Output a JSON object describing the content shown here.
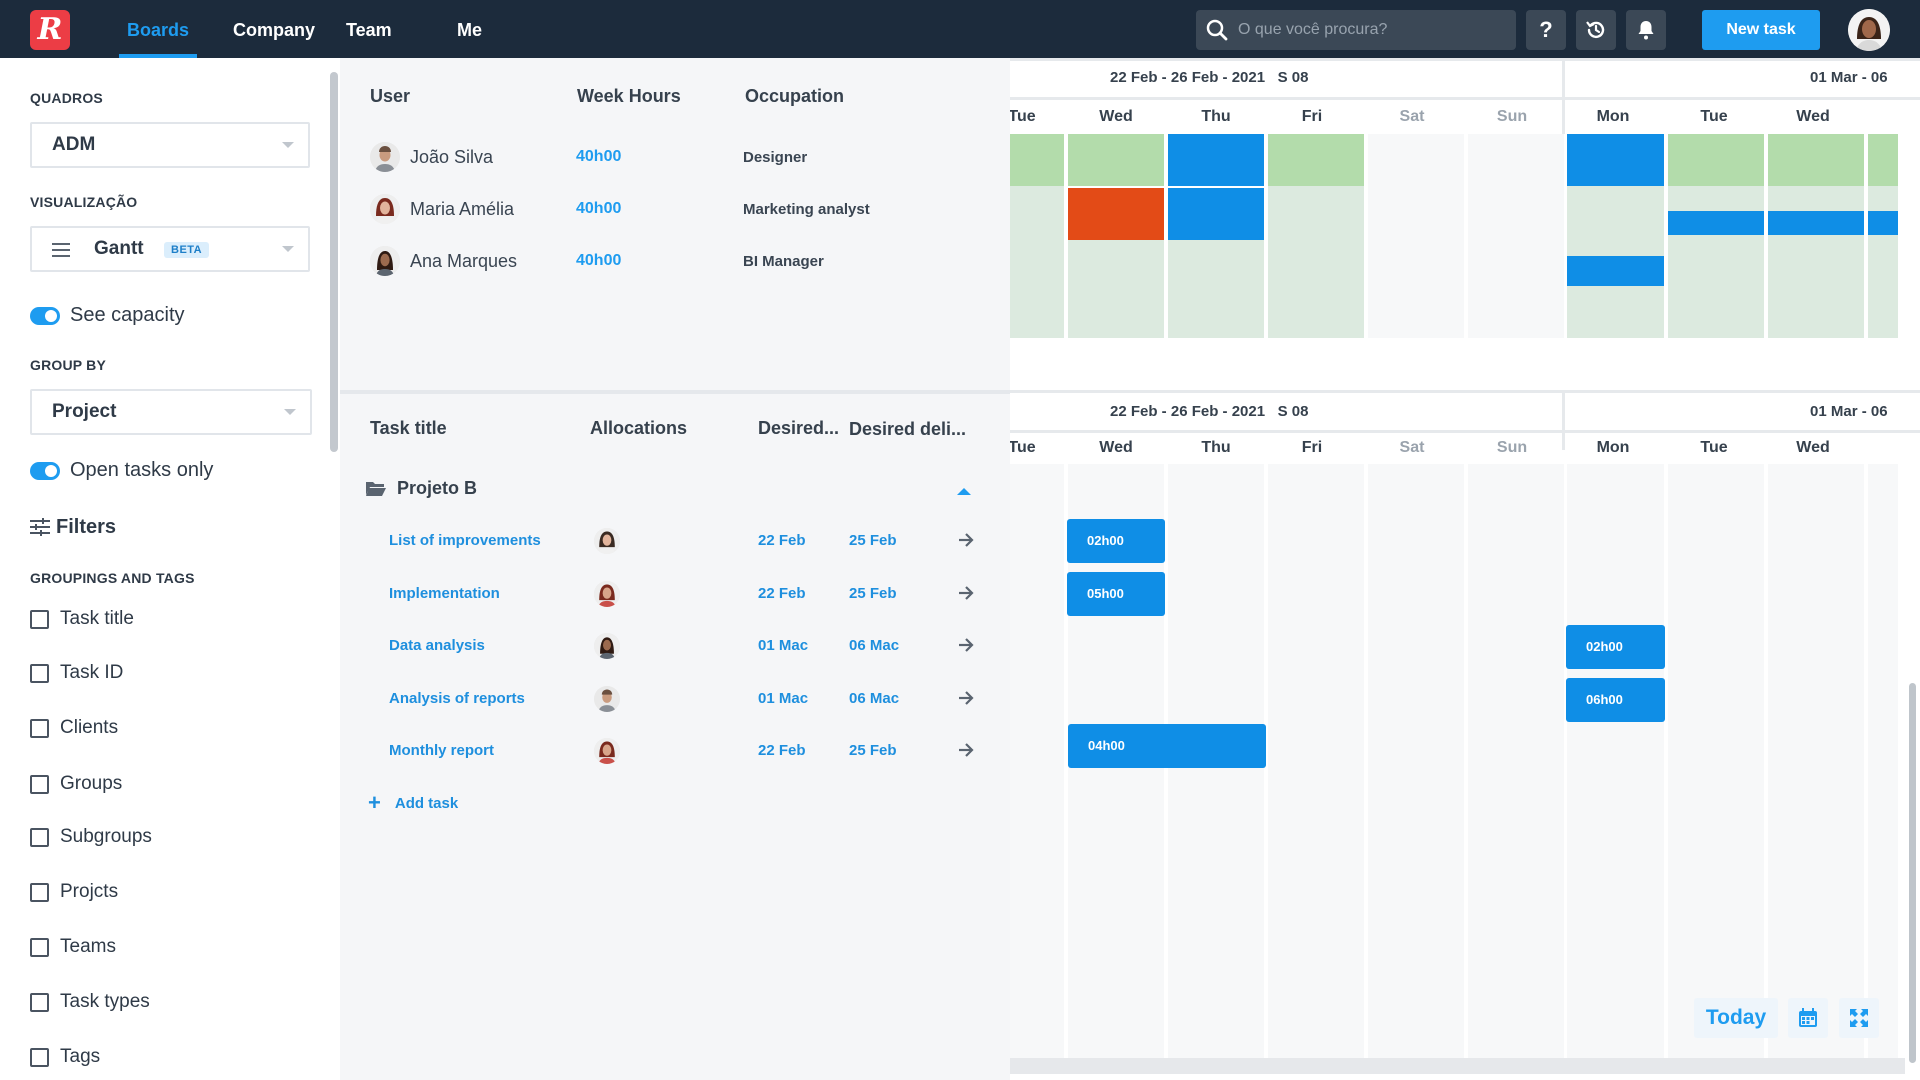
{
  "app": {
    "logo_letter": "R"
  },
  "nav": {
    "items": [
      "Boards",
      "Company",
      "Team",
      "Me"
    ],
    "active": "Boards"
  },
  "search": {
    "placeholder": "O que você procura?"
  },
  "header": {
    "help_label": "?",
    "new_task_label": "New task"
  },
  "sidebar": {
    "boards_label": "QUADROS",
    "board_value": "ADM",
    "view_label": "VISUALIZAÇÃO",
    "view_value": "Gantt",
    "view_badge": "BETA",
    "see_capacity": "See capacity",
    "group_by_label": "GROUP BY",
    "group_by_value": "Project",
    "open_tasks_only": "Open tasks only",
    "filters_label": "Filters",
    "groupings_label": "GROUPINGS AND TAGS",
    "groupings": [
      "Task title",
      "Task ID",
      "Clients",
      "Groups",
      "Subgroups",
      "Projcts",
      "Teams",
      "Task types",
      "Tags"
    ]
  },
  "users_table": {
    "headers": {
      "user": "User",
      "week_hours": "Week Hours",
      "occupation": "Occupation"
    },
    "rows": [
      {
        "name": "João Silva",
        "hours": "40h00",
        "occupation": "Designer"
      },
      {
        "name": "Maria Amélia",
        "hours": "40h00",
        "occupation": "Marketing analyst"
      },
      {
        "name": "Ana Marques",
        "hours": "40h00",
        "occupation": "BI Manager"
      }
    ]
  },
  "tasks_table": {
    "headers": {
      "title": "Task title",
      "allocations": "Allocations",
      "desired_start": "Desired...",
      "desired_delivery": "Desired deli..."
    },
    "project": "Projeto B",
    "rows": [
      {
        "title": "List of improvements",
        "start": "22 Feb",
        "end": "25 Feb"
      },
      {
        "title": "Implementation",
        "start": "22 Feb",
        "end": "25 Feb"
      },
      {
        "title": "Data analysis",
        "start": "01 Mac",
        "end": "06 Mac"
      },
      {
        "title": "Analysis of reports",
        "start": "01 Mac",
        "end": "06 Mac"
      },
      {
        "title": "Monthly report",
        "start": "22 Feb",
        "end": "25 Feb"
      }
    ],
    "add_task_label": "Add task"
  },
  "gantt": {
    "week1_label": "22 Feb - 26 Feb - 2021   S 08",
    "week2_label": "01 Mar - 06",
    "days": [
      "Tue",
      "Wed",
      "Thu",
      "Fri",
      "Sat",
      "Sun",
      "Mon",
      "Tue",
      "Wed"
    ],
    "task_bars": [
      "02h00",
      "05h00",
      "02h00",
      "06h00",
      "04h00"
    ],
    "today_label": "Today",
    "colors": {
      "bar_blue": "#0f8ee6",
      "capacity_green": "#b3dcab",
      "capacity_light": "#dceadf",
      "over_red": "#e34b17"
    }
  }
}
